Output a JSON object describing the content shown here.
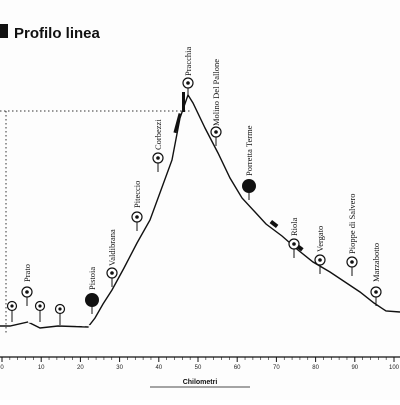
{
  "title": "Profilo linea",
  "x_axis": {
    "label": "Chilometri",
    "ticks": [
      "0",
      "10",
      "20",
      "30",
      "40",
      "50",
      "60",
      "70",
      "80",
      "90",
      "100"
    ]
  },
  "stations": [
    {
      "label": "Prato",
      "km": 14
    },
    {
      "label": "Pistoia",
      "km": 33
    },
    {
      "label": "Valdibrana",
      "km": 39
    },
    {
      "label": "Piteccio",
      "km": 44
    },
    {
      "label": "Corbezzi",
      "km": 50
    },
    {
      "label": "Pracchia",
      "km": 58
    },
    {
      "label": "Molino Del Pallone",
      "km": 62
    },
    {
      "label": "Porretta Terme",
      "km": 72
    },
    {
      "label": "Riola",
      "km": 82
    },
    {
      "label": "Vergato",
      "km": 88
    },
    {
      "label": "Pioppe di Salvero",
      "km": 94
    },
    {
      "label": "Marzabotto",
      "km": 98
    }
  ],
  "icons": {
    "station_marker": "circle-dot-icon",
    "major_station_marker": "filled-circle-icon"
  }
}
